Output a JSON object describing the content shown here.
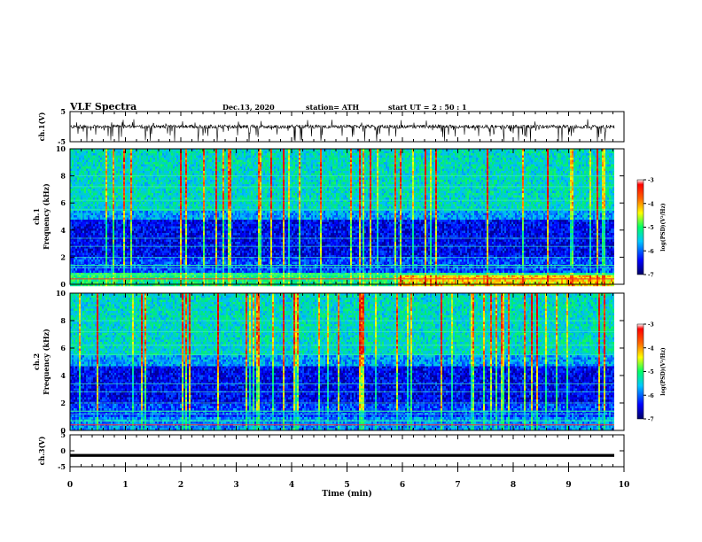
{
  "header": {
    "title": "VLF Spectra",
    "date": "Dec.13, 2020",
    "station": "station= ATH",
    "start": "start UT =   2 : 50 : 1"
  },
  "chart_data": [
    {
      "type": "line",
      "panel": "ch1-waveform",
      "ylabel": "ch.1(V)",
      "ylim": [
        -5,
        5
      ],
      "yticks": [
        "5",
        "-5"
      ],
      "xlim": [
        0,
        10
      ],
      "description_values": "noisy waveform near 0 V with negative spikes"
    },
    {
      "type": "heatmap",
      "panel": "ch1-spectrogram",
      "ylabel": [
        "ch.1",
        "Frequency (kHz)"
      ],
      "ylim": [
        0,
        10
      ],
      "yticks": [
        "0",
        "2",
        "4",
        "6",
        "8",
        "10"
      ],
      "xlim": [
        0,
        10
      ],
      "colorbar": {
        "label": "log(PSD)(V²/Hz)",
        "range": [
          -7,
          -3
        ],
        "ticks": [
          "-3",
          "-4",
          "-5",
          "-6",
          "-7"
        ]
      }
    },
    {
      "type": "heatmap",
      "panel": "ch2-spectrogram",
      "ylabel": [
        "ch.2",
        "Frequency (kHz)"
      ],
      "ylim": [
        0,
        10
      ],
      "yticks": [
        "0",
        "2",
        "4",
        "6",
        "8",
        "10"
      ],
      "xlim": [
        0,
        10
      ],
      "colorbar": {
        "label": "log(PSD)(V²/Hz)",
        "range": [
          -7,
          -3
        ],
        "ticks": [
          "-3",
          "-4",
          "-5",
          "-6",
          "-7"
        ]
      }
    },
    {
      "type": "line",
      "panel": "ch3-waveform",
      "ylabel": "ch.3(V)",
      "ylim": [
        -5,
        5
      ],
      "yticks": [
        "5",
        "0",
        "-5"
      ],
      "xlim": [
        0,
        10
      ],
      "xlabel": "Time (min)",
      "xticks": [
        "0",
        "1",
        "2",
        "3",
        "4",
        "5",
        "6",
        "7",
        "8",
        "9",
        "10"
      ]
    }
  ]
}
